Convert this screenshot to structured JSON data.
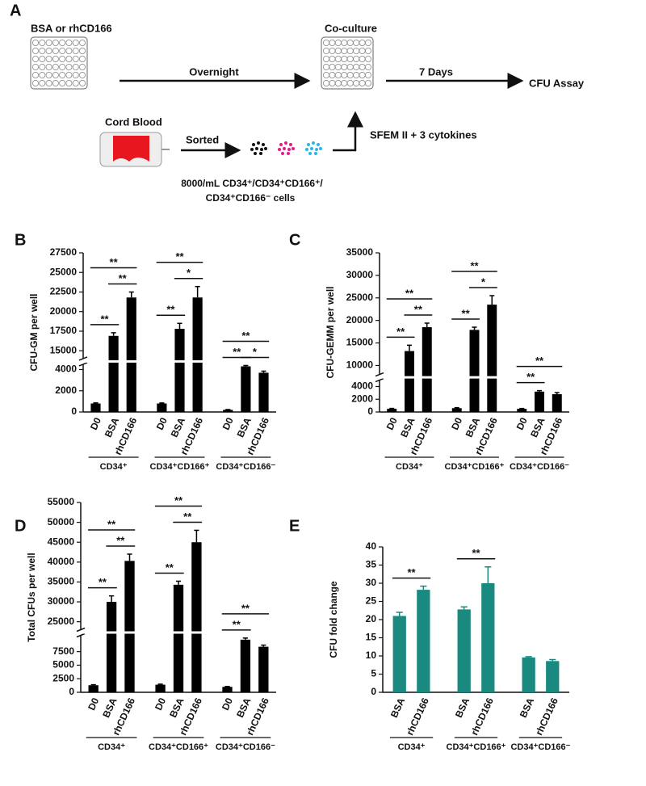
{
  "diagram": {
    "panel_label": "A",
    "plate_1_label": "BSA or rhCD166",
    "step_1": "Overnight",
    "plate_2_label": "Co-culture",
    "step_2": "7 Days",
    "result": "CFU Assay",
    "source": "Cord Blood",
    "sorting": "Sorted",
    "medium": "SFEM II + 3 cytokines",
    "cells_line_1": "8000/mL CD34⁺/CD34⁺CD166⁺/",
    "cells_line_2": "CD34⁺CD166⁻ cells"
  },
  "chart_data": [
    {
      "type": "bar",
      "panel_label": "B",
      "ylabel": "CFU-GM per well",
      "categories": [
        "D0",
        "BSA",
        "rhCD166",
        "D0",
        "BSA",
        "rhCD166",
        "D0",
        "BSA",
        "rhCD166"
      ],
      "groups": [
        {
          "label": "CD34⁺",
          "span": [
            0,
            2
          ]
        },
        {
          "label": "CD34⁺CD166⁺",
          "span": [
            3,
            5
          ]
        },
        {
          "label": "CD34⁺CD166⁻",
          "span": [
            6,
            8
          ]
        }
      ],
      "values": [
        800,
        16900,
        21800,
        800,
        17800,
        21800,
        200,
        4300,
        3700
      ],
      "errors": [
        60,
        400,
        700,
        50,
        700,
        1400,
        30,
        80,
        150
      ],
      "color": "#000000",
      "ylim": [
        0,
        27500
      ],
      "ybreak": [
        4500,
        14000
      ],
      "yticks": [
        0,
        2000,
        4000,
        15000,
        17500,
        20000,
        22500,
        25000,
        27500
      ],
      "annotations": [
        {
          "text": "**",
          "span": [
            0,
            1
          ]
        },
        {
          "text": "**",
          "span": [
            1,
            2
          ]
        },
        {
          "text": "**",
          "span": [
            0,
            2
          ]
        },
        {
          "text": "**",
          "span": [
            3,
            4
          ]
        },
        {
          "text": "*",
          "span": [
            4,
            5
          ]
        },
        {
          "text": "**",
          "span": [
            3,
            5
          ]
        },
        {
          "text": "**",
          "span": [
            6,
            7
          ]
        },
        {
          "text": "*",
          "span": [
            7,
            8
          ]
        },
        {
          "text": "**",
          "span": [
            6,
            8
          ]
        }
      ]
    },
    {
      "type": "bar",
      "panel_label": "C",
      "ylabel": "CFU-GEMM per well",
      "categories": [
        "D0",
        "BSA",
        "rhCD166",
        "D0",
        "BSA",
        "rhCD166",
        "D0",
        "BSA",
        "rhCD166"
      ],
      "groups": [
        {
          "label": "CD34⁺",
          "span": [
            0,
            2
          ]
        },
        {
          "label": "CD34⁺CD166⁺",
          "span": [
            3,
            5
          ]
        },
        {
          "label": "CD34⁺CD166⁻",
          "span": [
            6,
            8
          ]
        }
      ],
      "values": [
        500,
        13200,
        18500,
        600,
        17900,
        23500,
        500,
        3200,
        2800
      ],
      "errors": [
        60,
        1300,
        900,
        80,
        600,
        2000,
        50,
        150,
        250
      ],
      "color": "#000000",
      "ylim": [
        0,
        35000
      ],
      "ybreak": [
        5000,
        8000
      ],
      "yticks": [
        0,
        2000,
        4000,
        10000,
        15000,
        20000,
        25000,
        30000,
        35000
      ],
      "annotations": [
        {
          "text": "**",
          "span": [
            0,
            1
          ]
        },
        {
          "text": "**",
          "span": [
            1,
            2
          ]
        },
        {
          "text": "**",
          "span": [
            0,
            2
          ]
        },
        {
          "text": "**",
          "span": [
            3,
            4
          ]
        },
        {
          "text": "*",
          "span": [
            4,
            5
          ]
        },
        {
          "text": "**",
          "span": [
            3,
            5
          ]
        },
        {
          "text": "**",
          "span": [
            6,
            7
          ]
        },
        {
          "text": "**",
          "span": [
            6,
            8
          ]
        }
      ]
    },
    {
      "type": "bar",
      "panel_label": "D",
      "ylabel": "Total CFUs per well",
      "categories": [
        "D0",
        "BSA",
        "rhCD166",
        "D0",
        "BSA",
        "rhCD166",
        "D0",
        "BSA",
        "rhCD166"
      ],
      "groups": [
        {
          "label": "CD34⁺",
          "span": [
            0,
            2
          ]
        },
        {
          "label": "CD34⁺CD166⁺",
          "span": [
            3,
            5
          ]
        },
        {
          "label": "CD34⁺CD166⁻",
          "span": [
            6,
            8
          ]
        }
      ],
      "values": [
        1300,
        30000,
        40300,
        1400,
        34300,
        45000,
        1000,
        9700,
        8400
      ],
      "errors": [
        100,
        1500,
        1700,
        100,
        900,
        3000,
        80,
        300,
        300
      ],
      "color": "#000000",
      "ylim": [
        0,
        55000
      ],
      "ybreak": [
        10500,
        23000
      ],
      "yticks": [
        0,
        2500,
        5000,
        7500,
        25000,
        30000,
        35000,
        40000,
        45000,
        50000,
        55000
      ],
      "annotations": [
        {
          "text": "**",
          "span": [
            0,
            1
          ]
        },
        {
          "text": "**",
          "span": [
            1,
            2
          ]
        },
        {
          "text": "**",
          "span": [
            0,
            2
          ]
        },
        {
          "text": "**",
          "span": [
            3,
            4
          ]
        },
        {
          "text": "**",
          "span": [
            4,
            5
          ]
        },
        {
          "text": "**",
          "span": [
            3,
            5
          ]
        },
        {
          "text": "**",
          "span": [
            6,
            7
          ]
        },
        {
          "text": "**",
          "span": [
            6,
            8
          ]
        }
      ]
    },
    {
      "type": "bar",
      "panel_label": "E",
      "ylabel": "CFU fold change",
      "categories": [
        "BSA",
        "rhCD166",
        "BSA",
        "rhCD166",
        "BSA",
        "rhCD166"
      ],
      "groups": [
        {
          "label": "CD34⁺",
          "span": [
            0,
            1
          ]
        },
        {
          "label": "CD34⁺CD166⁺",
          "span": [
            2,
            3
          ]
        },
        {
          "label": "CD34⁺CD166⁻",
          "span": [
            4,
            5
          ]
        }
      ],
      "values": [
        21,
        28.2,
        22.8,
        30,
        9.6,
        8.6
      ],
      "errors": [
        1,
        1,
        0.7,
        4.5,
        0.2,
        0.4
      ],
      "color": "#1a8a80",
      "ylim": [
        0,
        40
      ],
      "yticks": [
        0,
        5,
        10,
        15,
        20,
        25,
        30,
        35,
        40
      ],
      "annotations": [
        {
          "text": "**",
          "span": [
            0,
            1
          ]
        },
        {
          "text": "**",
          "span": [
            2,
            3
          ]
        }
      ]
    }
  ]
}
